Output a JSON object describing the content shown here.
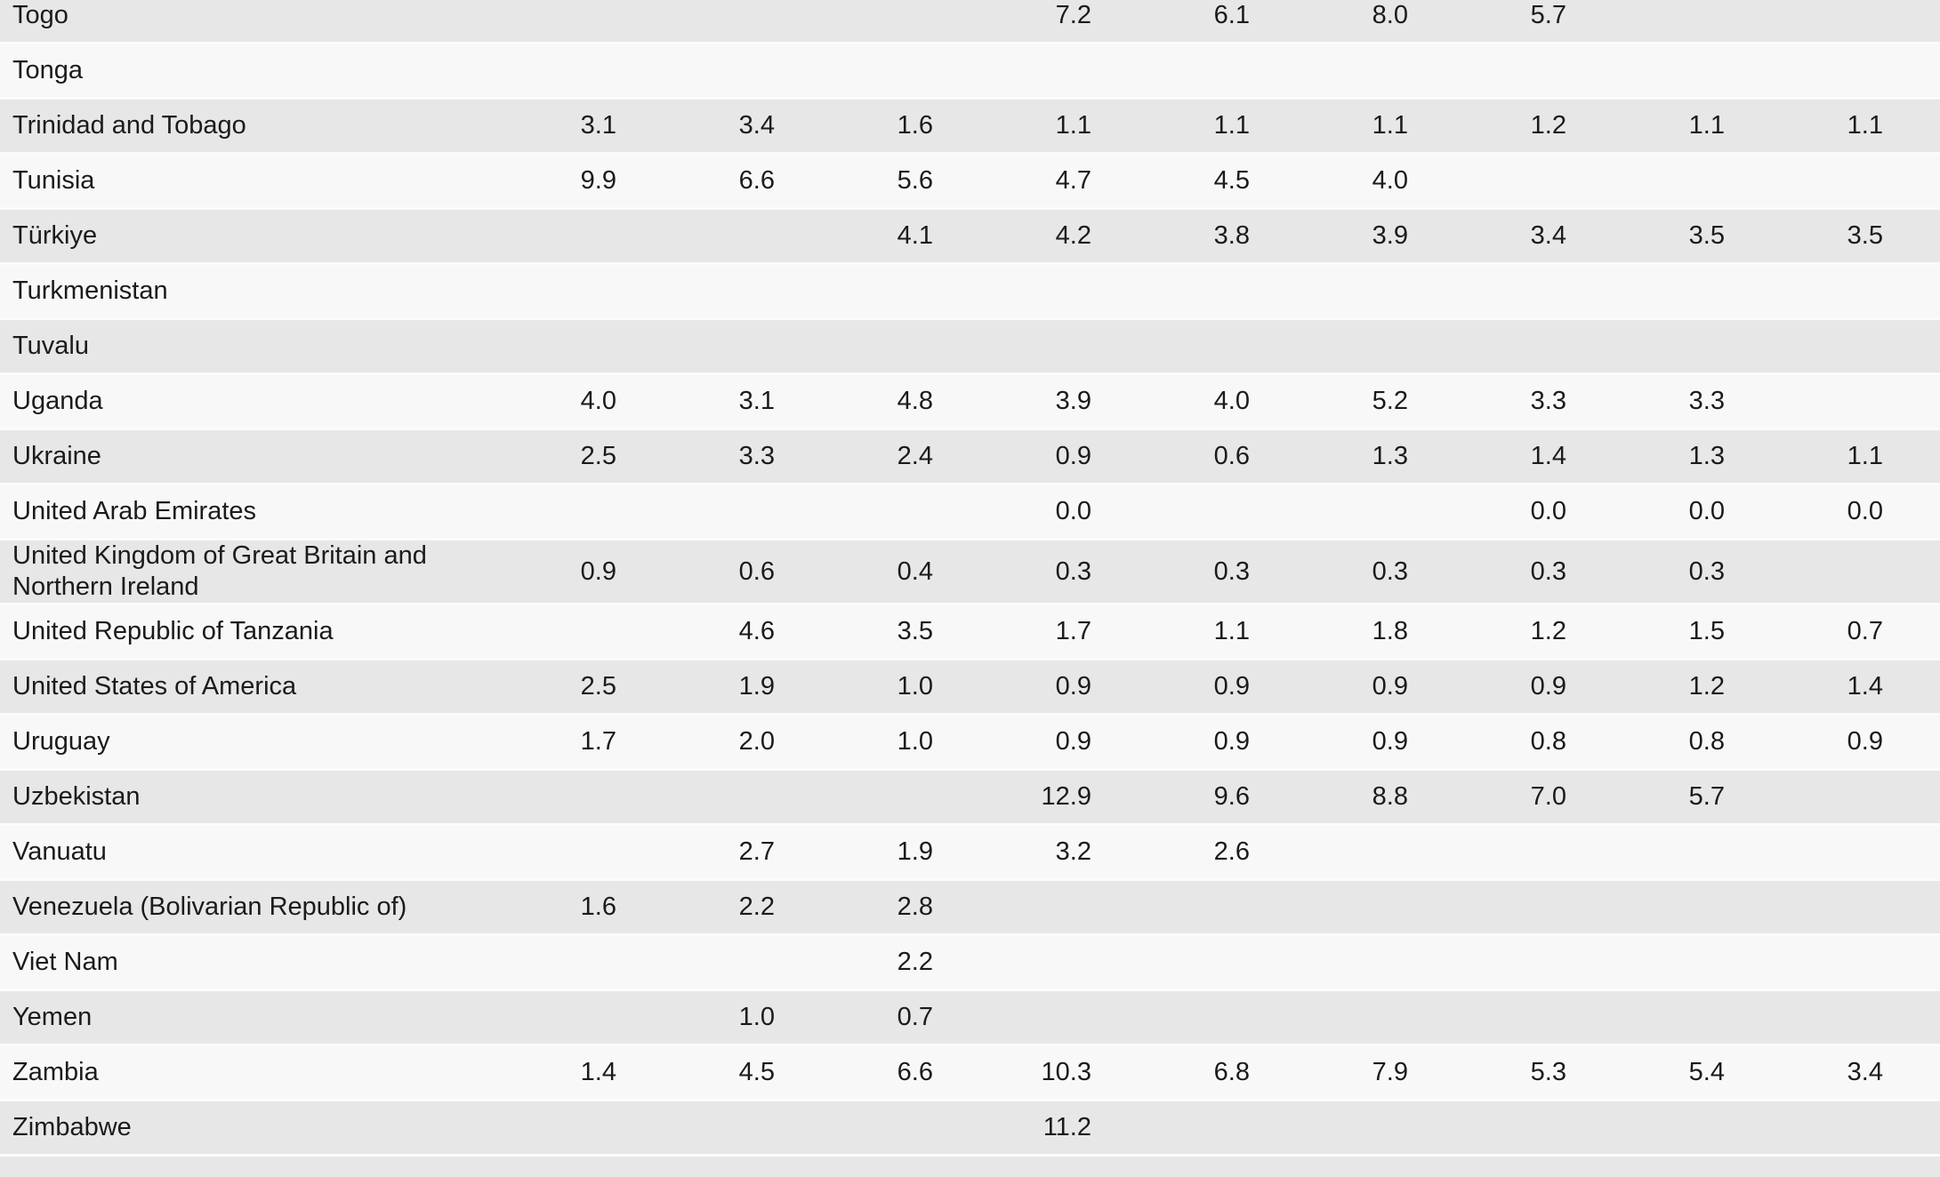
{
  "colors": {
    "row_shaded": "#e7e7e7",
    "row_plain": "#f8f8f8",
    "row_separator": "#fbfbfb",
    "text": "#1b1b1a",
    "page_background": "#ffffff"
  },
  "table": {
    "value_columns_count": 9,
    "rows": [
      {
        "country": "Togo",
        "values": [
          "",
          "",
          "",
          "7.2",
          "6.1",
          "8.0",
          "5.7",
          "",
          ""
        ]
      },
      {
        "country": "Tonga",
        "values": [
          "",
          "",
          "",
          "",
          "",
          "",
          "",
          "",
          ""
        ]
      },
      {
        "country": "Trinidad and Tobago",
        "values": [
          "3.1",
          "3.4",
          "1.6",
          "1.1",
          "1.1",
          "1.1",
          "1.2",
          "1.1",
          "1.1"
        ]
      },
      {
        "country": "Tunisia",
        "values": [
          "9.9",
          "6.6",
          "5.6",
          "4.7",
          "4.5",
          "4.0",
          "",
          "",
          ""
        ]
      },
      {
        "country": "Türkiye",
        "values": [
          "",
          "",
          "4.1",
          "4.2",
          "3.8",
          "3.9",
          "3.4",
          "3.5",
          "3.5"
        ]
      },
      {
        "country": "Turkmenistan",
        "values": [
          "",
          "",
          "",
          "",
          "",
          "",
          "",
          "",
          ""
        ]
      },
      {
        "country": "Tuvalu",
        "values": [
          "",
          "",
          "",
          "",
          "",
          "",
          "",
          "",
          ""
        ]
      },
      {
        "country": "Uganda",
        "values": [
          "4.0",
          "3.1",
          "4.8",
          "3.9",
          "4.0",
          "5.2",
          "3.3",
          "3.3",
          ""
        ]
      },
      {
        "country": "Ukraine",
        "values": [
          "2.5",
          "3.3",
          "2.4",
          "0.9",
          "0.6",
          "1.3",
          "1.4",
          "1.3",
          "1.1"
        ]
      },
      {
        "country": "United Arab Emirates",
        "values": [
          "",
          "",
          "",
          "0.0",
          "",
          "",
          "0.0",
          "0.0",
          "0.0"
        ]
      },
      {
        "country": "United Kingdom of Great Britain and Northern Ireland",
        "values": [
          "0.9",
          "0.6",
          "0.4",
          "0.3",
          "0.3",
          "0.3",
          "0.3",
          "0.3",
          ""
        ]
      },
      {
        "country": "United Republic of Tanzania",
        "values": [
          "",
          "4.6",
          "3.5",
          "1.7",
          "1.1",
          "1.8",
          "1.2",
          "1.5",
          "0.7"
        ]
      },
      {
        "country": "United States of America",
        "values": [
          "2.5",
          "1.9",
          "1.0",
          "0.9",
          "0.9",
          "0.9",
          "0.9",
          "1.2",
          "1.4"
        ]
      },
      {
        "country": "Uruguay",
        "values": [
          "1.7",
          "2.0",
          "1.0",
          "0.9",
          "0.9",
          "0.9",
          "0.8",
          "0.8",
          "0.9"
        ]
      },
      {
        "country": "Uzbekistan",
        "values": [
          "",
          "",
          "",
          "12.9",
          "9.6",
          "8.8",
          "7.0",
          "5.7",
          ""
        ]
      },
      {
        "country": "Vanuatu",
        "values": [
          "",
          "2.7",
          "1.9",
          "3.2",
          "2.6",
          "",
          "",
          "",
          ""
        ]
      },
      {
        "country": "Venezuela (Bolivarian Republic of)",
        "values": [
          "1.6",
          "2.2",
          "2.8",
          "",
          "",
          "",
          "",
          "",
          ""
        ]
      },
      {
        "country": "Viet Nam",
        "values": [
          "",
          "",
          "2.2",
          "",
          "",
          "",
          "",
          "",
          ""
        ]
      },
      {
        "country": "Yemen",
        "values": [
          "",
          "1.0",
          "0.7",
          "",
          "",
          "",
          "",
          "",
          ""
        ]
      },
      {
        "country": "Zambia",
        "values": [
          "1.4",
          "4.5",
          "6.6",
          "10.3",
          "6.8",
          "7.9",
          "5.3",
          "5.4",
          "3.4"
        ]
      },
      {
        "country": "Zimbabwe",
        "values": [
          "",
          "",
          "",
          "11.2",
          "",
          "",
          "",
          "",
          ""
        ]
      }
    ]
  }
}
